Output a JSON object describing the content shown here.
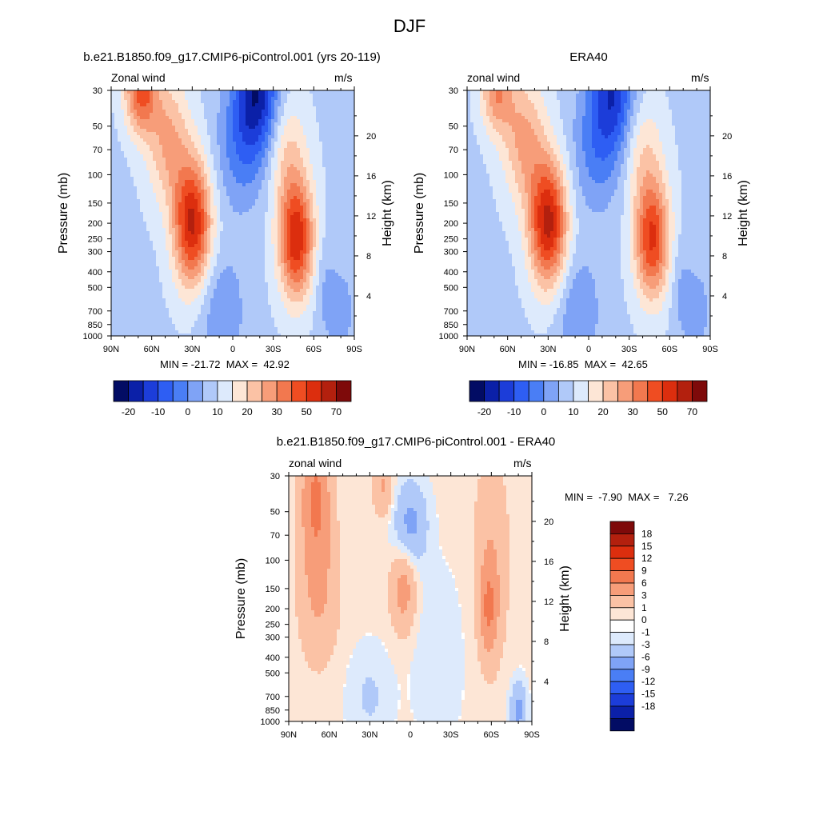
{
  "page": {
    "title": "DJF"
  },
  "colors": {
    "model_obs_scale": [
      "#020c64",
      "#0b20a8",
      "#1c3dd9",
      "#2e5ef3",
      "#4a7ef5",
      "#7fa3f6",
      "#b0c9f9",
      "#ddeafc",
      "#fde6d6",
      "#fbc2a5",
      "#f79d79",
      "#f2784f",
      "#ef4d22",
      "#dc2e0e",
      "#b3200e",
      "#7e0a0a"
    ],
    "diff_scale": [
      "#020c64",
      "#0b20a8",
      "#1c3dd9",
      "#2e5ef3",
      "#4a7ef5",
      "#7fa3f6",
      "#b0c9f9",
      "#ddeafc",
      "#ffffff",
      "#fde6d6",
      "#fbc2a5",
      "#f79d79",
      "#f2784f",
      "#ef4d22",
      "#dc2e0e",
      "#b3200e",
      "#7e0a0a"
    ]
  },
  "chart_data": [
    {
      "id": "model",
      "type": "heatmap",
      "title": "b.e21.B1850.f09_g17.CMIP6-piControl.001 (yrs 20-119)",
      "left_label": "Zonal wind",
      "right_label": "m/s",
      "ylabel": "Pressure (mb)",
      "ylabel_right": "Height (km)",
      "x_ticks": [
        "90N",
        "60N",
        "30N",
        "0",
        "30S",
        "60S",
        "90S"
      ],
      "y_ticks": [
        "30",
        "50",
        "70",
        "100",
        "150",
        "200",
        "250",
        "300",
        "400",
        "500",
        "700",
        "850",
        "1000"
      ],
      "height_ticks": [
        "20",
        "16",
        "12",
        "8",
        "4"
      ],
      "stats": "MIN = -21.72  MAX =  42.92",
      "min": -21.72,
      "max": 42.92,
      "colorbar_labels": [
        "-20",
        "-10",
        "0",
        "10",
        "20",
        "30",
        "50",
        "70"
      ],
      "features": [
        {
          "lat": 30,
          "p": 200,
          "value": 40
        },
        {
          "lat": -48,
          "p": 250,
          "value": 36
        },
        {
          "lat": 75,
          "p": 30,
          "value": 28
        },
        {
          "lat": -18,
          "p": 30,
          "value": -21.7
        },
        {
          "lat": 5,
          "p": 700,
          "value": -6
        }
      ]
    },
    {
      "id": "obs",
      "type": "heatmap",
      "title": "ERA40",
      "left_label": "zonal wind",
      "right_label": "m/s",
      "ylabel": "Pressure (mb)",
      "ylabel_right": "Height (km)",
      "x_ticks": [
        "90N",
        "60N",
        "30N",
        "0",
        "30S",
        "60S",
        "90S"
      ],
      "y_ticks": [
        "30",
        "50",
        "70",
        "100",
        "150",
        "200",
        "250",
        "300",
        "400",
        "500",
        "700",
        "850",
        "1000"
      ],
      "height_ticks": [
        "20",
        "16",
        "12",
        "8",
        "4"
      ],
      "stats": "MIN = -16.85  MAX =  42.65",
      "min": -16.85,
      "max": 42.65,
      "colorbar_labels": [
        "-20",
        "-10",
        "0",
        "10",
        "20",
        "30",
        "50",
        "70"
      ],
      "features": [
        {
          "lat": 30,
          "p": 200,
          "value": 42
        },
        {
          "lat": -47,
          "p": 250,
          "value": 34
        },
        {
          "lat": 70,
          "p": 40,
          "value": 20
        },
        {
          "lat": -18,
          "p": 30,
          "value": -16.8
        },
        {
          "lat": 5,
          "p": 700,
          "value": -5
        }
      ]
    },
    {
      "id": "diff",
      "type": "heatmap",
      "title": "b.e21.B1850.f09_g17.CMIP6-piControl.001 - ERA40",
      "left_label": "zonal wind",
      "right_label": "m/s",
      "ylabel": "Pressure (mb)",
      "ylabel_right": "Height (km)",
      "x_ticks": [
        "90N",
        "60N",
        "30N",
        "0",
        "30S",
        "60S",
        "90S"
      ],
      "y_ticks": [
        "30",
        "50",
        "70",
        "100",
        "150",
        "200",
        "250",
        "300",
        "400",
        "500",
        "700",
        "850",
        "1000"
      ],
      "height_ticks": [
        "20",
        "16",
        "12",
        "8",
        "4"
      ],
      "stats": "MIN =  -7.90  MAX =   7.26",
      "min": -7.9,
      "max": 7.26,
      "colorbar_labels": [
        "18",
        "15",
        "12",
        "9",
        "6",
        "3",
        "1",
        "0",
        "-1",
        "-3",
        "-6",
        "-9",
        "-12",
        "-15",
        "-18"
      ],
      "features": [
        {
          "lat": 70,
          "p": 40,
          "value": 6
        },
        {
          "lat": 5,
          "p": 150,
          "value": 3
        },
        {
          "lat": -57,
          "p": 200,
          "value": 4
        },
        {
          "lat": 20,
          "p": 35,
          "value": 3
        },
        {
          "lat": 0,
          "p": 60,
          "value": -3
        }
      ]
    }
  ]
}
